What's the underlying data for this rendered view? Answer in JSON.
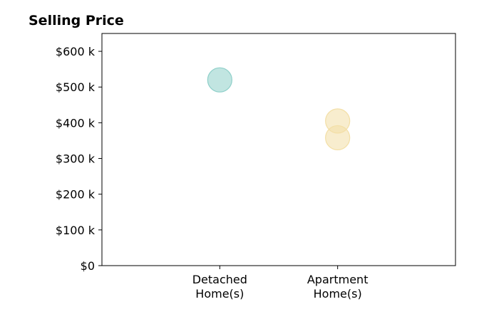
{
  "chart_data": {
    "type": "scatter",
    "title": "Selling Price",
    "xlabel": "",
    "ylabel": "",
    "categories": [
      [
        "Detached",
        "Home(s)"
      ],
      [
        "Apartment",
        "Home(s)"
      ]
    ],
    "y_ticks": [
      {
        "value": 0,
        "label": "$0"
      },
      {
        "value": 100,
        "label": "$100 k"
      },
      {
        "value": 200,
        "label": "$200 k"
      },
      {
        "value": 300,
        "label": "$300 k"
      },
      {
        "value": 400,
        "label": "$400 k"
      },
      {
        "value": 500,
        "label": "$500 k"
      },
      {
        "value": 600,
        "label": "$600 k"
      }
    ],
    "ylim": [
      0,
      650
    ],
    "x_range": [
      -1,
      2
    ],
    "grid": false,
    "points": [
      {
        "category_index": 0,
        "value": 520,
        "color": "#8ecfc9"
      },
      {
        "category_index": 1,
        "value": 405,
        "color": "#f3dfa6"
      },
      {
        "category_index": 1,
        "value": 358,
        "color": "#f3dfa6"
      }
    ]
  }
}
